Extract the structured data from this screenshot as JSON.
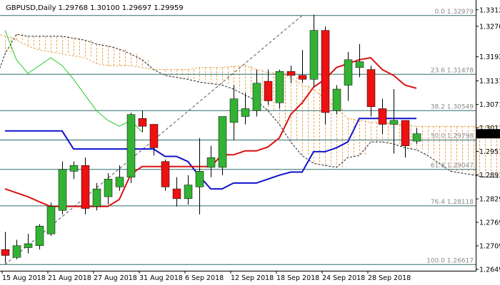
{
  "chart_data": {
    "type": "candlestick",
    "title": "GBPUSD,Daily  1.29768 1.30100 1.29697 1.29959",
    "ohlc": [
      {
        "o": 1.27,
        "h": 1.2745,
        "l": 1.2665,
        "c": 1.2685
      },
      {
        "o": 1.268,
        "h": 1.2725,
        "l": 1.2675,
        "c": 1.271
      },
      {
        "o": 1.2705,
        "h": 1.274,
        "l": 1.269,
        "c": 1.2715
      },
      {
        "o": 1.271,
        "h": 1.2765,
        "l": 1.27,
        "c": 1.276
      },
      {
        "o": 1.274,
        "h": 1.282,
        "l": 1.2735,
        "c": 1.281
      },
      {
        "o": 1.28,
        "h": 1.2925,
        "l": 1.279,
        "c": 1.2905
      },
      {
        "o": 1.29,
        "h": 1.2925,
        "l": 1.288,
        "c": 1.2915
      },
      {
        "o": 1.2915,
        "h": 1.2935,
        "l": 1.279,
        "c": 1.2805
      },
      {
        "o": 1.281,
        "h": 1.287,
        "l": 1.28,
        "c": 1.2855
      },
      {
        "o": 1.2835,
        "h": 1.2895,
        "l": 1.2815,
        "c": 1.288
      },
      {
        "o": 1.286,
        "h": 1.2915,
        "l": 1.285,
        "c": 1.2885
      },
      {
        "o": 1.2885,
        "h": 1.305,
        "l": 1.287,
        "c": 1.3045
      },
      {
        "o": 1.3035,
        "h": 1.3055,
        "l": 1.3,
        "c": 1.3015
      },
      {
        "o": 1.302,
        "h": 1.302,
        "l": 1.294,
        "c": 1.296
      },
      {
        "o": 1.2925,
        "h": 1.293,
        "l": 1.285,
        "c": 1.286
      },
      {
        "o": 1.2855,
        "h": 1.2885,
        "l": 1.281,
        "c": 1.283
      },
      {
        "o": 1.283,
        "h": 1.289,
        "l": 1.2815,
        "c": 1.2865
      },
      {
        "o": 1.286,
        "h": 1.2985,
        "l": 1.279,
        "c": 1.29
      },
      {
        "o": 1.291,
        "h": 1.2965,
        "l": 1.2885,
        "c": 1.2935
      },
      {
        "o": 1.291,
        "h": 1.304,
        "l": 1.289,
        "c": 1.304
      },
      {
        "o": 1.3025,
        "h": 1.312,
        "l": 1.298,
        "c": 1.3085
      },
      {
        "o": 1.304,
        "h": 1.31,
        "l": 1.302,
        "c": 1.306
      },
      {
        "o": 1.3055,
        "h": 1.316,
        "l": 1.304,
        "c": 1.3125
      },
      {
        "o": 1.313,
        "h": 1.316,
        "l": 1.307,
        "c": 1.308
      },
      {
        "o": 1.3075,
        "h": 1.316,
        "l": 1.306,
        "c": 1.3155
      },
      {
        "o": 1.3155,
        "h": 1.317,
        "l": 1.3125,
        "c": 1.3145
      },
      {
        "o": 1.3145,
        "h": 1.321,
        "l": 1.3125,
        "c": 1.3135
      },
      {
        "o": 1.3135,
        "h": 1.33,
        "l": 1.3115,
        "c": 1.326
      },
      {
        "o": 1.326,
        "h": 1.327,
        "l": 1.302,
        "c": 1.305
      },
      {
        "o": 1.3055,
        "h": 1.312,
        "l": 1.3045,
        "c": 1.311
      },
      {
        "o": 1.312,
        "h": 1.3205,
        "l": 1.308,
        "c": 1.3185
      },
      {
        "o": 1.3165,
        "h": 1.3225,
        "l": 1.314,
        "c": 1.318
      },
      {
        "o": 1.316,
        "h": 1.317,
        "l": 1.304,
        "c": 1.3065
      },
      {
        "o": 1.306,
        "h": 1.3085,
        "l": 1.2995,
        "c": 1.302
      },
      {
        "o": 1.302,
        "h": 1.311,
        "l": 1.2945,
        "c": 1.303
      },
      {
        "o": 1.303,
        "h": 1.303,
        "l": 1.2935,
        "c": 1.2965
      },
      {
        "o": 1.2977,
        "h": 1.301,
        "l": 1.297,
        "c": 1.2996
      }
    ],
    "tenkan": [
      1.2855,
      1.2845,
      1.2835,
      1.2822,
      1.281,
      1.281,
      1.281,
      1.281,
      1.281,
      1.281,
      1.2828,
      1.2892,
      1.2912,
      1.2912,
      1.2912,
      1.2912,
      1.2912,
      1.2912,
      1.2912,
      1.2942,
      1.2942,
      1.2952,
      1.2952,
      1.2962,
      1.2985,
      1.3045,
      1.3075,
      1.3115,
      1.3135,
      1.3165,
      1.3175,
      1.3185,
      1.319,
      1.316,
      1.3145,
      1.312,
      1.3112
    ],
    "kijun": [
      1.3003,
      1.3003,
      1.3003,
      1.3003,
      1.3003,
      1.3003,
      1.2957,
      1.2957,
      1.2957,
      1.2957,
      1.2957,
      1.2957,
      1.2957,
      1.2957,
      1.2938,
      1.2938,
      1.2925,
      1.2888,
      1.2855,
      1.2855,
      1.287,
      1.287,
      1.287,
      1.288,
      1.289,
      1.2898,
      1.2898,
      1.295,
      1.295,
      1.296,
      1.2975,
      1.3035,
      1.3035,
      1.3035,
      1.3035,
      1.3035,
      1.3035
    ],
    "chikou": [
      1.326,
      1.3185,
      1.315,
      1.317,
      1.319,
      1.317,
      1.3135,
      1.3095,
      1.3055,
      1.303,
      1.3015,
      1.303,
      1.3
    ],
    "span_a": [
      1.3255,
      1.3245,
      1.3235,
      1.322,
      1.321,
      1.3205,
      1.32,
      1.3195,
      1.319,
      1.3175,
      1.317,
      1.317,
      1.317,
      1.3165,
      1.316,
      1.316,
      1.316,
      1.316,
      1.3165,
      1.3165,
      1.3165,
      1.3168,
      1.317,
      1.316,
      1.3152,
      1.315,
      1.314,
      1.312,
      1.311,
      1.3085,
      1.306,
      1.3035,
      1.303,
      1.3025,
      1.3025,
      1.302,
      1.3018,
      1.3015,
      1.3015,
      1.3015,
      1.3015,
      1.3015,
      1.3015,
      1.3015,
      1.3015,
      1.3015,
      1.3012,
      1.3,
      1.2995,
      1.299,
      1.299,
      1.299,
      1.2988,
      1.2985
    ],
    "span_b": [
      1.312,
      1.32,
      1.325,
      1.3245,
      1.3245,
      1.3245,
      1.3245,
      1.324,
      1.3235,
      1.3225,
      1.322,
      1.3212,
      1.32,
      1.3185,
      1.316,
      1.3145,
      1.314,
      1.3135,
      1.3128,
      1.3124,
      1.312,
      1.311,
      1.3095,
      1.308,
      1.3055,
      1.302,
      1.2975,
      1.294,
      1.292,
      1.2915,
      1.291,
      1.2935,
      1.294,
      1.2975,
      1.2975,
      1.297,
      1.296,
      1.2955,
      1.294,
      1.292,
      1.29,
      1.2895,
      1.289,
      1.2885,
      1.2885,
      1.288,
      1.287,
      1.287,
      1.287,
      1.287,
      1.287,
      1.2875,
      1.2885,
      1.2895
    ],
    "price_axis": {
      "min": 1.26495,
      "max": 1.33285,
      "ticks": [
        "1.33125",
        "1.32705",
        "1.31925",
        "1.31310",
        "1.30710",
        "1.30110",
        "1.29510",
        "1.28910",
        "1.28295",
        "1.27695",
        "1.27095",
        "1.26495"
      ]
    },
    "current_price": "1.29959",
    "date_labels": [
      {
        "i": 0,
        "t": "15 Aug 2018"
      },
      {
        "i": 4,
        "t": "21 Aug 2018"
      },
      {
        "i": 8,
        "t": "27 Aug 2018"
      },
      {
        "i": 12,
        "t": "31 Aug 2018"
      },
      {
        "i": 16,
        "t": "6 Sep 2018"
      },
      {
        "i": 20,
        "t": "12 Sep 2018"
      },
      {
        "i": 24,
        "t": "18 Sep 2018"
      },
      {
        "i": 28,
        "t": "24 Sep 2018"
      },
      {
        "i": 32,
        "t": "28 Sep 2018"
      }
    ],
    "fibonacci": [
      {
        "label": "0.0",
        "price": 1.32979
      },
      {
        "label": "23.6",
        "price": 1.31478
      },
      {
        "label": "38.2",
        "price": 1.30549
      },
      {
        "label": "50.0",
        "price": 1.29798
      },
      {
        "label": "61.8",
        "price": 1.29047
      },
      {
        "label": "76.4",
        "price": 1.28118
      },
      {
        "label": "100.0",
        "price": 1.26617
      }
    ],
    "colors": {
      "bull": "#33b233",
      "bear": "#ee1111",
      "tenkan": "#dd1111",
      "kijun": "#1111cc",
      "chikou": "#22cc22",
      "cloud": "#e8a552",
      "fib_line": "#2e6b6b",
      "trend": "#555555",
      "marker": "#000000"
    }
  }
}
